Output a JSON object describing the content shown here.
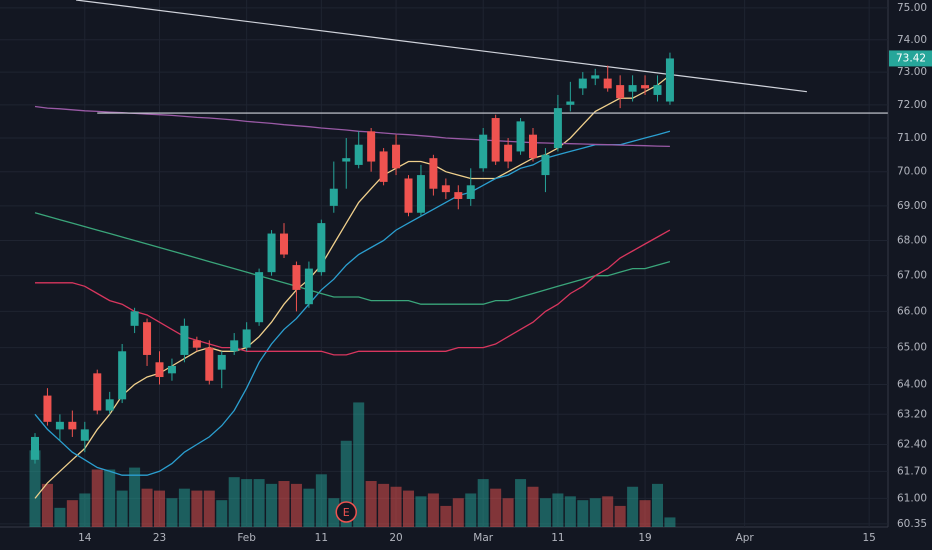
{
  "chart_data": {
    "type": "candlestick",
    "log": true,
    "grid": true,
    "ylim": [
      60.27,
      75.25
    ],
    "yticks": [
      {
        "value": 75,
        "label": "75.00"
      },
      {
        "value": 74,
        "label": "74.00"
      },
      {
        "value": 73,
        "label": "73.00"
      },
      {
        "value": 72,
        "label": "72.00"
      },
      {
        "value": 71,
        "label": "71.00"
      },
      {
        "value": 70,
        "label": "70.00"
      },
      {
        "value": 69,
        "label": "69.00"
      },
      {
        "value": 68,
        "label": "68.00"
      },
      {
        "value": 67,
        "label": "67.00"
      },
      {
        "value": 66,
        "label": "66.00"
      },
      {
        "value": 65,
        "label": "65.00"
      },
      {
        "value": 64,
        "label": "64.00"
      },
      {
        "value": 63.2,
        "label": "63.20"
      },
      {
        "value": 62.4,
        "label": "62.40"
      },
      {
        "value": 61.7,
        "label": "61.70"
      },
      {
        "value": 61,
        "label": "61.00"
      },
      {
        "value": 60.35,
        "label": "60.35"
      }
    ],
    "categories": [
      null,
      null,
      null,
      null,
      "14",
      null,
      null,
      null,
      null,
      null,
      "23",
      null,
      null,
      null,
      null,
      null,
      null,
      "Feb",
      null,
      null,
      null,
      null,
      null,
      "11",
      null,
      null,
      null,
      null,
      null,
      "20",
      null,
      null,
      null,
      null,
      null,
      null,
      "Mar",
      null,
      null,
      null,
      null,
      null,
      "11",
      null,
      null,
      null,
      null,
      null,
      null,
      "19",
      null,
      null,
      null,
      null,
      null,
      null,
      null,
      "Apr",
      null,
      null,
      null,
      null,
      null,
      null,
      null,
      null,
      null,
      "15"
    ],
    "up_color": "#26a69a",
    "down_color": "#ef5350",
    "candles": {
      "open": [
        62.0,
        63.7,
        62.8,
        63.0,
        62.5,
        64.3,
        63.3,
        63.6,
        65.6,
        65.7,
        64.6,
        64.3,
        64.8,
        65.2,
        65.0,
        64.4,
        64.9,
        65.0,
        65.7,
        67.1,
        68.2,
        67.3,
        66.2,
        67.1,
        69.0,
        70.3,
        70.2,
        71.2,
        70.6,
        70.8,
        69.8,
        68.8,
        70.4,
        69.6,
        69.4,
        69.2,
        70.1,
        71.6,
        70.8,
        70.6,
        71.1,
        69.9,
        70.7,
        72.0,
        72.5,
        72.8,
        72.8,
        72.6,
        72.4,
        72.6,
        72.3,
        72.1,
        null,
        null,
        null,
        null,
        null,
        null,
        null,
        null,
        null,
        null,
        null,
        null,
        null,
        null,
        null,
        null
      ],
      "high": [
        62.7,
        63.9,
        63.2,
        63.3,
        63.0,
        64.4,
        63.8,
        65.1,
        66.1,
        65.8,
        64.9,
        64.7,
        65.8,
        65.3,
        65.2,
        64.9,
        65.4,
        65.7,
        67.2,
        68.3,
        68.5,
        67.4,
        67.4,
        68.6,
        70.3,
        71.0,
        71.2,
        71.3,
        70.7,
        71.1,
        69.9,
        70.2,
        70.5,
        69.8,
        69.6,
        70.1,
        71.3,
        71.7,
        71.0,
        71.6,
        71.3,
        70.7,
        72.3,
        72.7,
        73.0,
        73.1,
        73.2,
        72.9,
        72.9,
        72.9,
        72.9,
        73.6,
        null,
        null,
        null,
        null,
        null,
        null,
        null,
        null,
        null,
        null,
        null,
        null,
        null,
        null,
        null,
        null
      ],
      "low": [
        61.9,
        62.9,
        62.5,
        62.6,
        62.2,
        63.2,
        63.2,
        63.5,
        65.4,
        64.5,
        64.0,
        64.1,
        64.6,
        64.9,
        64.0,
        63.9,
        64.8,
        64.9,
        65.6,
        67.0,
        67.5,
        66.0,
        66.1,
        67.0,
        68.8,
        69.5,
        70.1,
        70.0,
        69.6,
        69.9,
        68.7,
        68.7,
        69.3,
        69.2,
        68.9,
        69.0,
        70.0,
        70.2,
        70.1,
        70.5,
        70.3,
        69.4,
        70.6,
        71.8,
        72.3,
        72.6,
        72.4,
        71.9,
        72.1,
        72.3,
        72.1,
        72.0,
        null,
        null,
        null,
        null,
        null,
        null,
        null,
        null,
        null,
        null,
        null,
        null,
        null,
        null,
        null,
        null
      ],
      "close": [
        62.6,
        63.0,
        63.0,
        62.8,
        62.8,
        63.3,
        63.6,
        64.9,
        66.0,
        64.8,
        64.2,
        64.5,
        65.6,
        65.0,
        64.1,
        64.8,
        65.2,
        65.5,
        67.1,
        68.2,
        67.6,
        66.6,
        67.2,
        68.5,
        69.5,
        70.4,
        70.8,
        70.3,
        69.7,
        70.1,
        68.8,
        69.9,
        69.5,
        69.4,
        69.2,
        69.6,
        71.1,
        70.3,
        70.3,
        71.5,
        70.4,
        70.5,
        71.9,
        72.1,
        72.8,
        72.9,
        72.5,
        72.2,
        72.6,
        72.5,
        72.6,
        73.42,
        null,
        null,
        null,
        null,
        null,
        null,
        null,
        null,
        null,
        null,
        null,
        null,
        null,
        null,
        null,
        null
      ]
    },
    "volume": {
      "ylim": [
        0,
        550
      ],
      "values": [
        80,
        45,
        20,
        28,
        35,
        60,
        60,
        38,
        62,
        40,
        38,
        30,
        40,
        38,
        38,
        28,
        52,
        50,
        50,
        45,
        48,
        45,
        40,
        55,
        30,
        90,
        130,
        48,
        45,
        42,
        38,
        32,
        35,
        22,
        30,
        35,
        50,
        40,
        30,
        50,
        42,
        30,
        35,
        32,
        28,
        30,
        32,
        22,
        42,
        28,
        45,
        10,
        null,
        null,
        null,
        null,
        null,
        null,
        null,
        null,
        null,
        null,
        null,
        null,
        null,
        null,
        null,
        null
      ]
    },
    "series": [
      {
        "color": "#f0d08c",
        "values": [
          61.0,
          61.4,
          61.7,
          62.0,
          62.3,
          62.8,
          63.2,
          63.7,
          64.0,
          64.2,
          64.3,
          64.5,
          64.7,
          64.9,
          65.0,
          64.9,
          64.9,
          65.0,
          65.3,
          65.7,
          66.2,
          66.6,
          66.9,
          67.3,
          67.9,
          68.5,
          69.1,
          69.5,
          69.9,
          70.1,
          70.3,
          70.3,
          70.2,
          70.0,
          69.9,
          69.8,
          69.8,
          69.8,
          70.0,
          70.2,
          70.4,
          70.5,
          70.7,
          71.0,
          71.4,
          71.8,
          72.0,
          72.2,
          72.2,
          72.4,
          72.6,
          72.9,
          null,
          null,
          null,
          null,
          null,
          null,
          null,
          null,
          null,
          null,
          null,
          null,
          null,
          null,
          null,
          null
        ]
      },
      {
        "color": "#2b9fd0",
        "values": [
          63.2,
          62.8,
          62.5,
          62.2,
          62.0,
          61.8,
          61.7,
          61.6,
          61.6,
          61.6,
          61.7,
          61.9,
          62.2,
          62.4,
          62.6,
          62.9,
          63.3,
          63.9,
          64.6,
          65.1,
          65.5,
          65.8,
          66.2,
          66.6,
          66.9,
          67.3,
          67.6,
          67.8,
          68.0,
          68.3,
          68.5,
          68.7,
          68.9,
          69.1,
          69.3,
          69.4,
          69.6,
          69.8,
          69.9,
          70.1,
          70.2,
          70.4,
          70.5,
          70.6,
          70.7,
          70.8,
          70.8,
          70.8,
          70.9,
          71.0,
          71.1,
          71.2,
          null,
          null,
          null,
          null,
          null,
          null,
          null,
          null,
          null,
          null,
          null,
          null,
          null,
          null,
          null,
          null
        ]
      },
      {
        "color": "#3aa57a",
        "values": [
          68.8,
          68.7,
          68.6,
          68.5,
          68.4,
          68.3,
          68.2,
          68.1,
          68.0,
          67.9,
          67.8,
          67.7,
          67.6,
          67.5,
          67.4,
          67.3,
          67.2,
          67.1,
          67.0,
          66.9,
          66.8,
          66.7,
          66.6,
          66.5,
          66.4,
          66.4,
          66.4,
          66.3,
          66.3,
          66.3,
          66.3,
          66.2,
          66.2,
          66.2,
          66.2,
          66.2,
          66.2,
          66.3,
          66.3,
          66.4,
          66.5,
          66.6,
          66.7,
          66.8,
          66.9,
          67.0,
          67.0,
          67.1,
          67.2,
          67.2,
          67.3,
          67.4,
          null,
          null,
          null,
          null,
          null,
          null,
          null,
          null,
          null,
          null,
          null,
          null,
          null,
          null,
          null,
          null
        ]
      },
      {
        "color": "#d8365e",
        "values": [
          66.8,
          66.8,
          66.8,
          66.8,
          66.7,
          66.5,
          66.3,
          66.2,
          66.0,
          65.9,
          65.7,
          65.5,
          65.3,
          65.2,
          65.1,
          65.0,
          65.0,
          64.9,
          64.9,
          64.9,
          64.9,
          64.9,
          64.9,
          64.9,
          64.8,
          64.8,
          64.9,
          64.9,
          64.9,
          64.9,
          64.9,
          64.9,
          64.9,
          64.9,
          65.0,
          65.0,
          65.0,
          65.1,
          65.3,
          65.5,
          65.7,
          66.0,
          66.2,
          66.5,
          66.7,
          67.0,
          67.2,
          67.5,
          67.7,
          67.9,
          68.1,
          68.3,
          null,
          null,
          null,
          null,
          null,
          null,
          null,
          null,
          null,
          null,
          null,
          null,
          null,
          null,
          null,
          null
        ]
      },
      {
        "color": "#9a5aa6",
        "values": [
          71.95,
          71.9,
          71.88,
          71.85,
          71.82,
          71.8,
          71.78,
          71.76,
          71.74,
          71.72,
          71.7,
          71.68,
          71.65,
          71.62,
          71.6,
          71.57,
          71.54,
          71.5,
          71.47,
          71.44,
          71.4,
          71.37,
          71.34,
          71.3,
          71.27,
          71.24,
          71.2,
          71.18,
          71.15,
          71.12,
          71.1,
          71.07,
          71.04,
          71.0,
          70.98,
          70.96,
          70.94,
          70.92,
          70.9,
          70.88,
          70.86,
          70.85,
          70.84,
          70.83,
          70.82,
          70.81,
          70.8,
          70.79,
          70.78,
          70.77,
          70.76,
          70.75,
          null,
          null,
          null,
          null,
          null,
          null,
          null,
          null,
          null,
          null,
          null,
          null,
          null,
          null,
          null,
          null
        ]
      }
    ],
    "trendlines": [
      {
        "start": [
          3.3,
          75.25
        ],
        "end": [
          62,
          72.4
        ]
      },
      {
        "start": [
          5,
          71.75
        ],
        "end": [
          68.5,
          71.75
        ]
      }
    ],
    "events": [
      {
        "index": 25,
        "label": "E"
      }
    ]
  }
}
